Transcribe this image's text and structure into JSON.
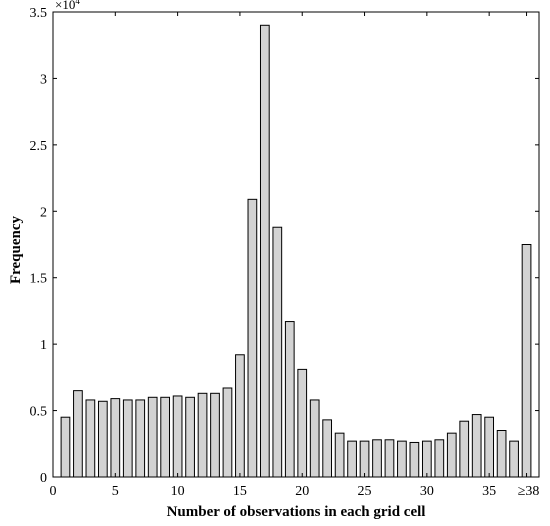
{
  "chart_data": {
    "type": "bar",
    "xlabel": "Number of observations in each grid cell",
    "ylabel": "Frequency",
    "y_multiplier": "×10",
    "y_multiplier_exponent": "4",
    "ylim": [
      0,
      3.5
    ],
    "y_ticks": [
      "0",
      "0.5",
      "1",
      "1.5",
      "2",
      "2.5",
      "3",
      "3.5"
    ],
    "xlim": [
      0,
      39
    ],
    "x_ticks": [
      "0",
      "5",
      "10",
      "15",
      "20",
      "25",
      "30",
      "35",
      "≥38"
    ],
    "x_tick_values": [
      0,
      5,
      10,
      15,
      20,
      25,
      30,
      35,
      38
    ],
    "grid": false,
    "legend": "none",
    "categories": [
      1,
      2,
      3,
      4,
      5,
      6,
      7,
      8,
      9,
      10,
      11,
      12,
      13,
      14,
      15,
      16,
      17,
      18,
      19,
      20,
      21,
      22,
      23,
      24,
      25,
      26,
      27,
      28,
      29,
      30,
      31,
      32,
      33,
      34,
      35,
      36,
      37,
      38
    ],
    "values": [
      0.45,
      0.65,
      0.58,
      0.57,
      0.59,
      0.58,
      0.58,
      0.6,
      0.6,
      0.61,
      0.6,
      0.63,
      0.63,
      0.67,
      0.92,
      2.09,
      3.4,
      1.88,
      1.17,
      0.81,
      0.58,
      0.43,
      0.33,
      0.27,
      0.27,
      0.28,
      0.28,
      0.27,
      0.26,
      0.27,
      0.28,
      0.33,
      0.42,
      0.47,
      0.45,
      0.35,
      0.27,
      1.75
    ],
    "bar_color": "#d3d3d3",
    "edge_color": "#000000"
  }
}
